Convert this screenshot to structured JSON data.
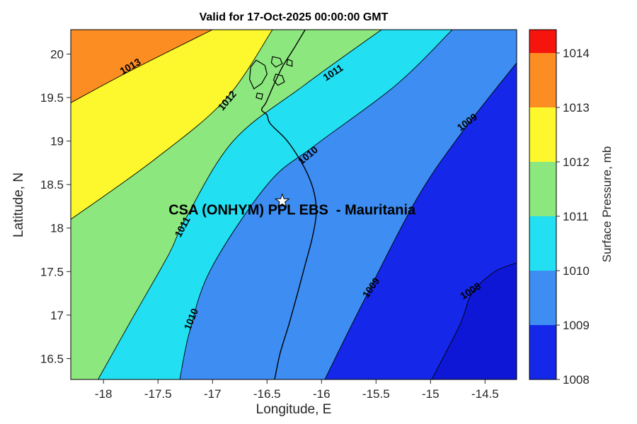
{
  "title": "Valid for 17-Oct-2025 00:00:00 GMT",
  "axes": {
    "xlabel": "Longitude, E",
    "ylabel": "Latitude, N"
  },
  "colorbar": {
    "label": "Surface Pressure, mb",
    "tick_labels_top_to_bottom": [
      "1014",
      "1013",
      "1012",
      "1011",
      "1010",
      "1009",
      "1008"
    ],
    "band_colors_top_to_bottom": [
      "#f6150d",
      "#fb8d23",
      "#fcf82d",
      "#8ce87e",
      "#22dff2",
      "#3d8df2",
      "#1527e8"
    ]
  },
  "chart_data": {
    "type": "filled_contour_map",
    "title": "Valid for 17-Oct-2025 00:00:00 GMT",
    "xlabel": "Longitude, E",
    "ylabel": "Latitude, N",
    "colorbar_label": "Surface Pressure, mb",
    "units": "mb",
    "x_range": [
      -18.3,
      -14.21
    ],
    "y_range": [
      16.26,
      20.28
    ],
    "x_ticks": [
      -18,
      -17.5,
      -17,
      -16.5,
      -16,
      -15.5,
      -15,
      -14.5
    ],
    "y_ticks": [
      16.5,
      17,
      17.5,
      18,
      18.5,
      19,
      19.5,
      20
    ],
    "levels": [
      1008,
      1009,
      1010,
      1011,
      1012,
      1013,
      1014
    ],
    "below_min_fill": "#0e17d6",
    "contours": [
      {
        "level": 1008,
        "fill_above": "#1527e8",
        "close": [
          "tr",
          "tl",
          "bl"
        ],
        "points": [
          [
            -14.99,
            16.26
          ],
          [
            -14.73,
            16.89
          ],
          [
            -14.62,
            17.25
          ],
          [
            -14.41,
            17.5
          ],
          [
            -14.21,
            17.6
          ]
        ],
        "labels": [
          {
            "lon": -14.63,
            "lat": 17.27,
            "rot": -33
          }
        ]
      },
      {
        "level": 1009,
        "fill_above": "#3d8df2",
        "close": [
          "tr",
          "tl",
          "bl"
        ],
        "points": [
          [
            -15.97,
            16.26
          ],
          [
            -15.61,
            17.17
          ],
          [
            -15.12,
            18.35
          ],
          [
            -14.7,
            19.12
          ],
          [
            -14.21,
            19.9
          ]
        ],
        "labels": [
          {
            "lon": -15.54,
            "lat": 17.31,
            "rot": -55
          },
          {
            "lon": -14.66,
            "lat": 19.21,
            "rot": -37
          }
        ]
      },
      {
        "level": 1010,
        "fill_above": "#22dff2",
        "close": [
          "tl",
          "bl"
        ],
        "points": [
          [
            -17.3,
            16.26
          ],
          [
            -17.21,
            16.81
          ],
          [
            -17.01,
            17.54
          ],
          [
            -16.49,
            18.51
          ],
          [
            -16.06,
            18.95
          ],
          [
            -15.32,
            19.64
          ],
          [
            -14.8,
            20.28
          ]
        ],
        "labels": [
          {
            "lon": -17.19,
            "lat": 16.95,
            "rot": -68
          },
          {
            "lon": -16.12,
            "lat": 18.83,
            "rot": -40
          }
        ]
      },
      {
        "level": 1011,
        "fill_above": "#8ce87e",
        "close": [
          "tl",
          "bl"
        ],
        "points": [
          [
            -18.05,
            16.26
          ],
          [
            -17.75,
            16.93
          ],
          [
            -17.4,
            17.7
          ],
          [
            -17.25,
            18.1
          ],
          [
            -16.81,
            19.0
          ],
          [
            -16.16,
            19.64
          ],
          [
            -15.45,
            20.28
          ]
        ],
        "labels": [
          {
            "lon": -17.27,
            "lat": 18.01,
            "rot": -62
          },
          {
            "lon": -15.89,
            "lat": 19.78,
            "rot": -33
          }
        ]
      },
      {
        "level": 1012,
        "fill_above": "#fcf82d",
        "close": [
          "tl"
        ],
        "points": [
          [
            -18.3,
            18.1
          ],
          [
            -17.53,
            18.79
          ],
          [
            -16.88,
            19.48
          ],
          [
            -16.45,
            20.28
          ]
        ],
        "labels": [
          {
            "lon": -16.86,
            "lat": 19.46,
            "rot": -50
          }
        ]
      },
      {
        "level": 1013,
        "fill_above": "#fb8d23",
        "close": [
          "tl"
        ],
        "points": [
          [
            -18.3,
            19.44
          ],
          [
            -17.75,
            19.81
          ],
          [
            -17.0,
            20.28
          ]
        ],
        "labels": [
          {
            "lon": -17.75,
            "lat": 19.85,
            "rot": -30
          }
        ]
      }
    ],
    "coastline": {
      "mainland": [
        [
          -16.15,
          20.28
        ],
        [
          -16.26,
          20.05
        ],
        [
          -16.36,
          19.85
        ],
        [
          -16.44,
          19.64
        ],
        [
          -16.51,
          19.44
        ],
        [
          -16.55,
          19.36
        ],
        [
          -16.5,
          19.3
        ],
        [
          -16.47,
          19.2
        ],
        [
          -16.32,
          19.01
        ],
        [
          -16.2,
          18.79
        ],
        [
          -16.11,
          18.57
        ],
        [
          -16.06,
          18.36
        ],
        [
          -16.05,
          18.14
        ],
        [
          -16.09,
          17.86
        ],
        [
          -16.15,
          17.58
        ],
        [
          -16.22,
          17.25
        ],
        [
          -16.3,
          16.89
        ],
        [
          -16.38,
          16.56
        ],
        [
          -16.43,
          16.26
        ]
      ],
      "islands": [
        [
          [
            -16.6,
            19.93
          ],
          [
            -16.52,
            19.87
          ],
          [
            -16.5,
            19.77
          ],
          [
            -16.55,
            19.66
          ],
          [
            -16.62,
            19.6
          ],
          [
            -16.66,
            19.71
          ],
          [
            -16.65,
            19.85
          ]
        ],
        [
          [
            -16.45,
            19.97
          ],
          [
            -16.38,
            19.95
          ],
          [
            -16.36,
            19.89
          ],
          [
            -16.42,
            19.85
          ],
          [
            -16.46,
            19.9
          ]
        ],
        [
          [
            -16.42,
            19.77
          ],
          [
            -16.36,
            19.75
          ],
          [
            -16.34,
            19.68
          ],
          [
            -16.4,
            19.64
          ],
          [
            -16.44,
            19.7
          ]
        ],
        [
          [
            -16.31,
            19.94
          ],
          [
            -16.27,
            19.92
          ],
          [
            -16.27,
            19.86
          ],
          [
            -16.32,
            19.88
          ]
        ],
        [
          [
            -16.59,
            19.55
          ],
          [
            -16.54,
            19.54
          ],
          [
            -16.55,
            19.48
          ],
          [
            -16.6,
            19.5
          ]
        ]
      ]
    },
    "marker": {
      "type": "star",
      "lon": -16.36,
      "lat": 18.31,
      "label": "CSA (ONHYM) PPL EBS  - Mauritania",
      "label_lon": -16.27,
      "label_lat": 18.2
    }
  }
}
